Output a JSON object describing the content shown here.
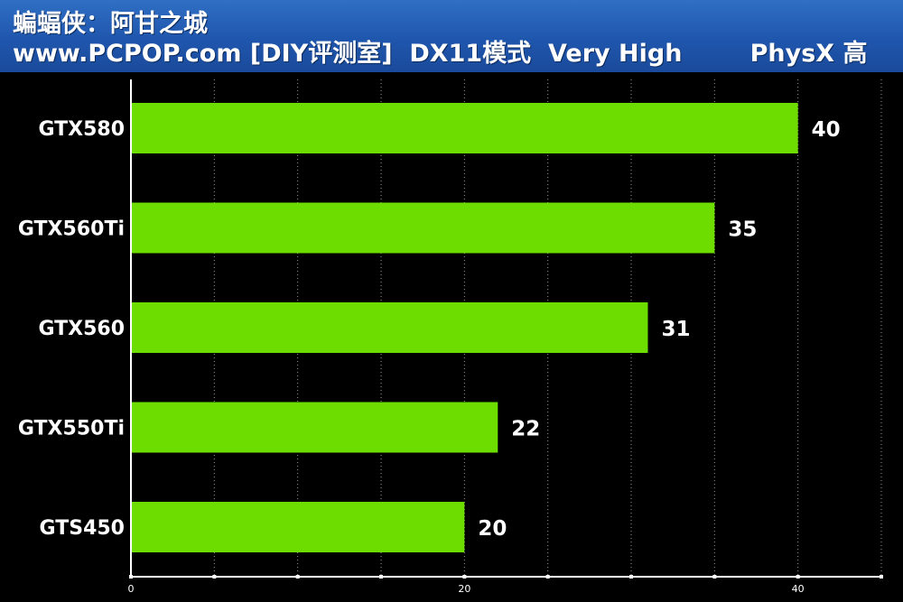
{
  "header": {
    "line1": "蝙蝠侠：阿甘之城",
    "line2": "www.PCPOP.com [DIY评测室]  DX11模式  Very High        PhysX 高"
  },
  "colors": {
    "bar": "#6ddd00",
    "background": "#000000",
    "header": "#1f56ad"
  },
  "chart_data": {
    "type": "bar",
    "orientation": "horizontal",
    "title": "",
    "xlabel": "",
    "ylabel": "",
    "categories": [
      "GTX580",
      "GTX560Ti",
      "GTX560",
      "GTX550Ti",
      "GTS450"
    ],
    "values": [
      40,
      35,
      31,
      22,
      20
    ],
    "xlim": [
      0,
      45
    ],
    "xticks": [
      0,
      20,
      40
    ],
    "grid": true,
    "legend": "none"
  }
}
